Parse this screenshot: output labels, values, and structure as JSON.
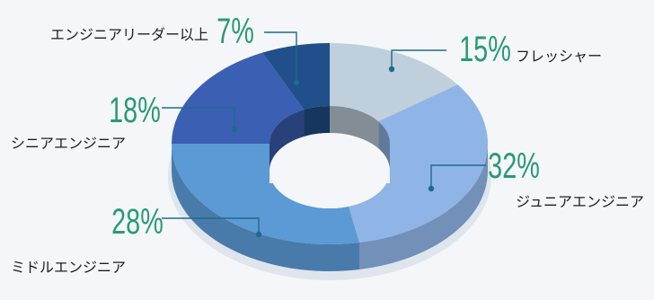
{
  "chart_data": {
    "type": "pie",
    "donut": true,
    "style": "3d",
    "slices": [
      {
        "label": "フレッシャー",
        "value": 15,
        "percent_label": "15%",
        "color": "#bfcfdc"
      },
      {
        "label": "ジュニアエンジニア",
        "value": 32,
        "percent_label": "32%",
        "color": "#8fb4e6"
      },
      {
        "label": "ミドルエンジニア",
        "value": 28,
        "percent_label": "28%",
        "color": "#5b9ad4"
      },
      {
        "label": "シニアエンジニア",
        "value": 18,
        "percent_label": "18%",
        "color": "#3b5fb3"
      },
      {
        "label": "エンジニアリーダー以上",
        "value": 7,
        "percent_label": "7%",
        "color": "#214f8a"
      }
    ],
    "percent_color": "#2a9a72",
    "leader_color": "#1d6b8a"
  }
}
